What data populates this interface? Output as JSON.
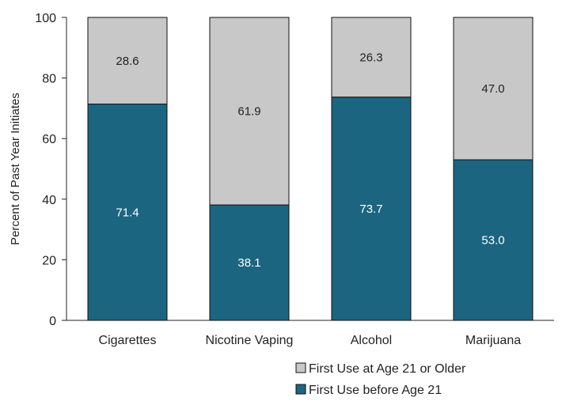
{
  "chart_data": {
    "type": "bar",
    "stacked": true,
    "title": "",
    "xlabel": "",
    "ylabel": "Percent of Past Year Initiates",
    "ylim": [
      0,
      100
    ],
    "yticks": [
      0,
      20,
      40,
      60,
      80,
      100
    ],
    "categories": [
      "Cigarettes",
      "Nicotine Vaping",
      "Alcohol",
      "Marijuana"
    ],
    "series": [
      {
        "name": "First Use before Age 21",
        "values": [
          71.4,
          38.1,
          73.7,
          53.0
        ],
        "labels": [
          "71.4",
          "38.1",
          "73.7",
          "53.0"
        ],
        "color": "#1c6580",
        "label_color": "#ffffff"
      },
      {
        "name": "First Use at Age 21 or Older",
        "values": [
          28.6,
          61.9,
          26.3,
          47.0
        ],
        "labels": [
          "28.6",
          "61.9",
          "26.3",
          "47.0"
        ],
        "color": "#c8c8c8",
        "label_color": "#222222"
      }
    ],
    "legend": {
      "position": "bottom",
      "entries": [
        "First Use at Age 21 or Older",
        "First Use before Age 21"
      ]
    },
    "grid": false
  }
}
